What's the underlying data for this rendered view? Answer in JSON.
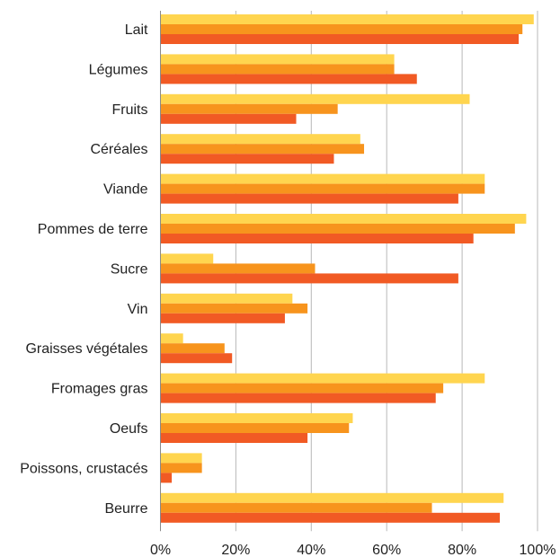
{
  "chart_data": {
    "type": "bar",
    "orientation": "horizontal",
    "categories": [
      "Lait",
      "Légumes",
      "Fruits",
      "Céréales",
      "Viande",
      "Pommes de terre",
      "Sucre",
      "Vin",
      "Graisses végétales",
      "Fromages gras",
      "Oeufs",
      "Poissons, crustacés",
      "Beurre"
    ],
    "series": [
      {
        "color": "#FFD54F",
        "values": [
          99,
          62,
          82,
          53,
          86,
          97,
          14,
          35,
          6,
          86,
          51,
          11,
          91
        ]
      },
      {
        "color": "#F7941D",
        "values": [
          96,
          62,
          47,
          54,
          86,
          94,
          41,
          39,
          17,
          75,
          50,
          11,
          72
        ]
      },
      {
        "color": "#F15A24",
        "values": [
          95,
          68,
          36,
          46,
          79,
          83,
          79,
          33,
          19,
          73,
          39,
          3,
          90
        ]
      }
    ],
    "xlim": [
      0,
      100
    ],
    "x_ticks": [
      "0%",
      "20%",
      "40%",
      "60%",
      "80%",
      "100%"
    ],
    "x_tick_values": [
      0,
      20,
      40,
      60,
      80,
      100
    ],
    "grid": true,
    "legend": "none",
    "title": "",
    "xlabel": "",
    "ylabel": ""
  }
}
